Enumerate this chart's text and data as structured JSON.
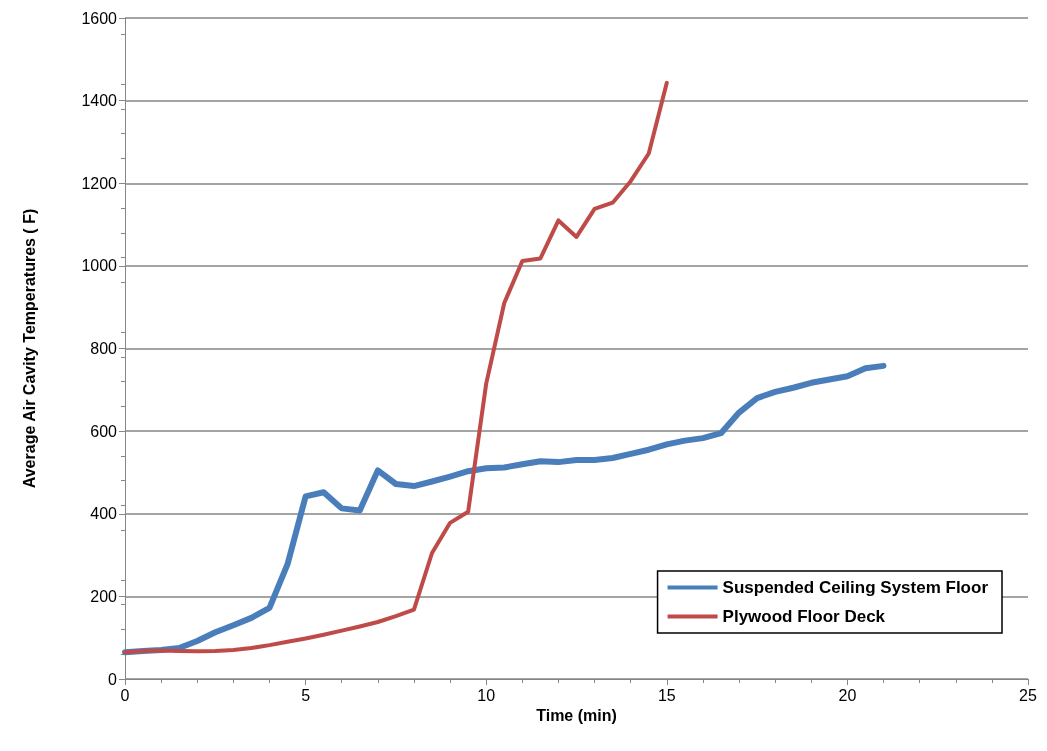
{
  "chart_data": {
    "type": "line",
    "xlabel": "Time (min)",
    "ylabel": "Average Air Cavity Temperatures ( F)",
    "xlim": [
      0,
      25
    ],
    "xticks": [
      0,
      5,
      10,
      15,
      20,
      25
    ],
    "ylim": [
      0,
      1600
    ],
    "yticks": [
      0,
      200,
      400,
      600,
      800,
      1000,
      1200,
      1400,
      1600
    ],
    "grid": "y",
    "legend": "bottom right",
    "marker": "none",
    "line_style": "solid",
    "series": [
      {
        "name": "Suspended Ceiling System Floor",
        "color": "#4a7ebb",
        "x": [
          0,
          0.5,
          1,
          1.5,
          2,
          2.5,
          3,
          3.5,
          4,
          4.5,
          5,
          5.5,
          6,
          6.5,
          7,
          7.5,
          8,
          8.5,
          9,
          9.5,
          10,
          10.5,
          11,
          11.5,
          12,
          12.5,
          13,
          13.5,
          14,
          14.5,
          15,
          15.5,
          16,
          16.5,
          17,
          17.5,
          18,
          18.5,
          19,
          19.5,
          20,
          20.5,
          21
        ],
        "values": [
          65,
          68,
          70,
          75,
          92,
          113,
          130,
          148,
          172,
          278,
          442,
          452,
          413,
          408,
          505,
          472,
          467,
          478,
          490,
          503,
          510,
          512,
          520,
          527,
          525,
          530,
          530,
          535,
          545,
          555,
          568,
          577,
          583,
          595,
          645,
          680,
          695,
          705,
          717,
          725,
          733,
          752,
          758
        ]
      },
      {
        "name": "Plywood Floor Deck",
        "color": "#be4b48",
        "x": [
          0,
          0.5,
          1,
          1.5,
          2,
          2.5,
          3,
          3.5,
          4,
          4.5,
          5,
          5.5,
          6,
          6.5,
          7,
          7.5,
          8,
          8.5,
          9,
          9.5,
          10,
          10.5,
          11,
          11.5,
          12,
          12.5,
          13,
          13.5,
          14,
          14.5,
          15
        ],
        "values": [
          65,
          68,
          69,
          68,
          67,
          68,
          70,
          75,
          82,
          90,
          98,
          107,
          117,
          127,
          138,
          152,
          168,
          305,
          378,
          405,
          715,
          910,
          1012,
          1018,
          1110,
          1070,
          1138,
          1153,
          1205,
          1272,
          1443
        ]
      }
    ]
  }
}
